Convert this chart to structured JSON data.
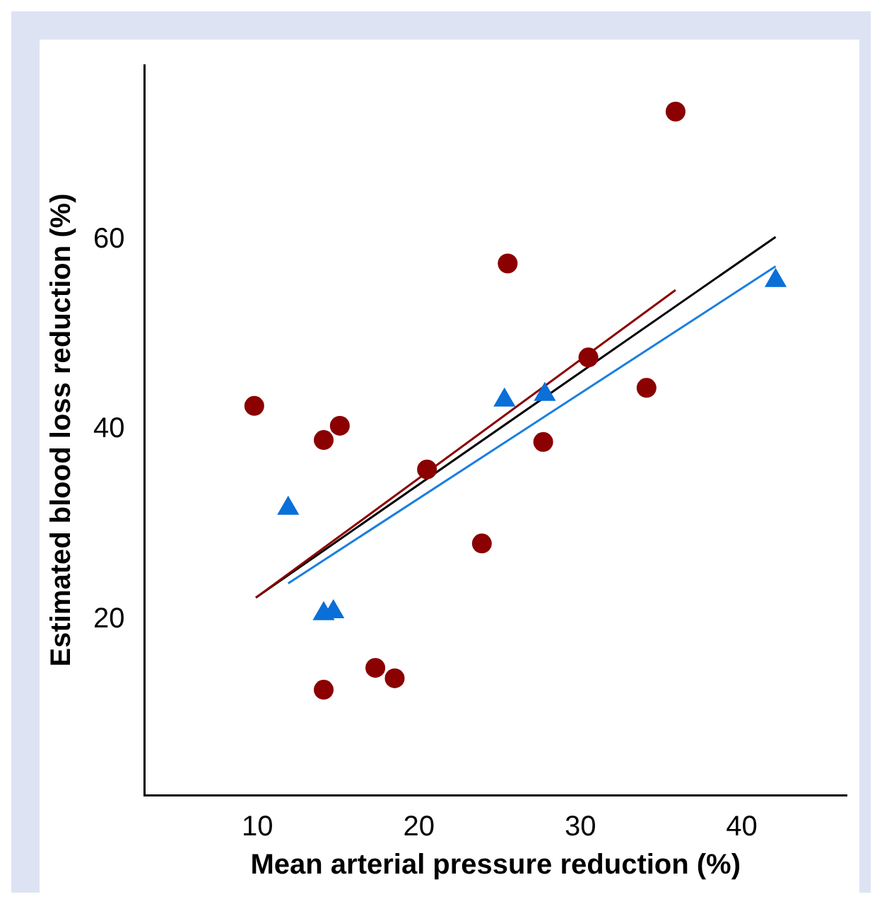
{
  "chart_data": {
    "type": "scatter",
    "xlabel": "Mean arterial pressure reduction (%)",
    "ylabel": "Estimated blood loss reduction (%)",
    "xlim": [
      3,
      46.5
    ],
    "xticks": [
      10,
      20,
      30,
      40
    ],
    "ylim": [
      1.5,
      78.4
    ],
    "yticks": [
      20,
      40,
      60
    ],
    "grid": false,
    "legend": false,
    "series": [
      {
        "type": "scatter",
        "marker": "circle",
        "color": "#8b0000",
        "x": [
          9.8,
          14.1,
          15.1,
          25.5,
          30.5,
          34.1,
          35.9,
          27.7,
          20.5,
          23.9,
          14.1,
          17.3,
          18.5
        ],
        "values": [
          42.5,
          38.9,
          40.4,
          57.5,
          47.6,
          44.4,
          73.5,
          38.7,
          35.8,
          28.0,
          12.6,
          14.9,
          13.8
        ]
      },
      {
        "type": "scatter",
        "marker": "triangle",
        "color": "#0a6fd8",
        "x": [
          11.9,
          14.1,
          14.7,
          25.3,
          27.8,
          42.1
        ],
        "values": [
          31.7,
          20.6,
          20.8,
          43.1,
          43.7,
          55.7
        ]
      },
      {
        "type": "line",
        "marker": "none",
        "color": "#8b0000",
        "x": [
          9.9,
          35.9
        ],
        "values": [
          22.3,
          54.7
        ]
      },
      {
        "type": "line",
        "marker": "none",
        "color": "#000000",
        "x": [
          9.9,
          42.1
        ],
        "values": [
          22.3,
          60.3
        ]
      },
      {
        "type": "line",
        "marker": "none",
        "color": "#1a7fe0",
        "x": [
          11.9,
          42.1
        ],
        "values": [
          23.8,
          57.2
        ]
      }
    ]
  }
}
